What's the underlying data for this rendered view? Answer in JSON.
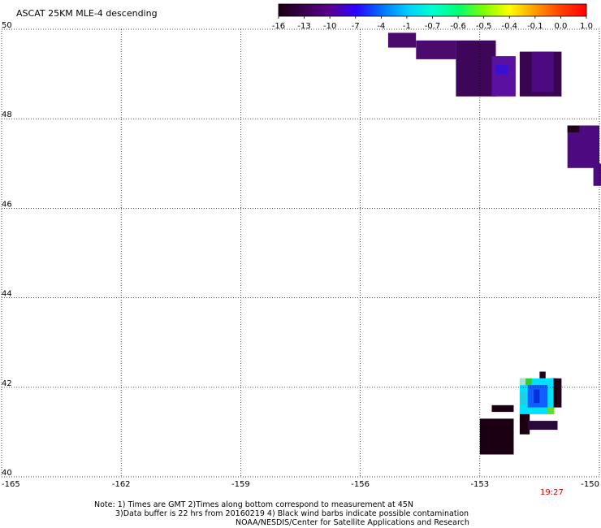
{
  "title": "ASCAT 25KM MLE-4 descending",
  "colorbar": {
    "tick_labels": [
      "-16",
      "-13",
      "-10",
      "-7",
      "-4",
      "-1",
      "-0.7",
      "-0.6",
      "-0.5",
      "-0.4",
      "-0.1",
      "0.0",
      "1.0"
    ],
    "colors": [
      "#1a0010",
      "#3a0050",
      "#5a0090",
      "#2a00ff",
      "#0070ff",
      "#00ccff",
      "#00ffd0",
      "#00ff70",
      "#7fff00",
      "#ffff00",
      "#ff9900",
      "#ff4000",
      "#ff0000"
    ]
  },
  "map": {
    "lat_labels": [
      "50",
      "48",
      "46",
      "44",
      "42",
      "40"
    ],
    "lon_labels": [
      "-165",
      "-162",
      "-159",
      "-156",
      "-153",
      "-150"
    ],
    "lat_values": [
      50,
      48,
      46,
      44,
      42,
      40
    ],
    "lon_values": [
      -165,
      -162,
      -159,
      -156,
      -153,
      -150
    ],
    "time_label": "19:27",
    "cells": [
      {
        "lon": -155.3,
        "lat": 49.92,
        "dlon": 0.7,
        "dlat": 0.33,
        "color": "#4a0a6e"
      },
      {
        "lon": -154.6,
        "lat": 49.75,
        "dlon": 1.0,
        "dlat": 0.42,
        "color": "#4a0a6e"
      },
      {
        "lon": -153.6,
        "lat": 49.75,
        "dlon": 1.0,
        "dlat": 1.25,
        "color": "#3d0658"
      },
      {
        "lon": -152.7,
        "lat": 49.4,
        "dlon": 0.6,
        "dlat": 0.9,
        "color": "#5a10a0"
      },
      {
        "lon": -152.6,
        "lat": 49.2,
        "dlon": 0.3,
        "dlat": 0.2,
        "color": "#3a10d0"
      },
      {
        "lon": -152.0,
        "lat": 49.5,
        "dlon": 1.05,
        "dlat": 1.0,
        "color": "#3a0550"
      },
      {
        "lon": -151.7,
        "lat": 49.5,
        "dlon": 0.55,
        "dlat": 0.9,
        "color": "#4d0a80"
      },
      {
        "lon": -150.8,
        "lat": 47.85,
        "dlon": 0.8,
        "dlat": 0.95,
        "color": "#4d0a80"
      },
      {
        "lon": -150.8,
        "lat": 47.85,
        "dlon": 0.3,
        "dlat": 0.15,
        "color": "#200018"
      },
      {
        "lon": -150.15,
        "lat": 47.0,
        "dlon": 0.3,
        "dlat": 0.5,
        "color": "#4d0a80"
      },
      {
        "lon": -153.0,
        "lat": 41.3,
        "dlon": 0.85,
        "dlat": 0.8,
        "color": "#1a0010"
      },
      {
        "lon": -152.7,
        "lat": 41.6,
        "dlon": 0.55,
        "dlat": 0.15,
        "color": "#1a0010"
      },
      {
        "lon": -152.0,
        "lat": 41.5,
        "dlon": 0.25,
        "dlat": 0.55,
        "color": "#1a0010"
      },
      {
        "lon": -151.8,
        "lat": 41.25,
        "dlon": 0.75,
        "dlat": 0.2,
        "color": "#2a0838"
      },
      {
        "lon": -151.3,
        "lat": 42.2,
        "dlon": 0.35,
        "dlat": 0.65,
        "color": "#200018"
      },
      {
        "lon": -151.2,
        "lat": 42.2,
        "dlon": 0.15,
        "dlat": 0.6,
        "color": "#1a0010"
      },
      {
        "lon": -151.5,
        "lat": 42.35,
        "dlon": 0.15,
        "dlat": 0.15,
        "color": "#200018"
      },
      {
        "lon": -152.0,
        "lat": 42.2,
        "dlon": 0.85,
        "dlat": 0.8,
        "color": "#00e0ff"
      },
      {
        "lon": -151.8,
        "lat": 42.05,
        "dlon": 0.5,
        "dlat": 0.5,
        "color": "#1060ff"
      },
      {
        "lon": -151.65,
        "lat": 41.95,
        "dlon": 0.15,
        "dlat": 0.3,
        "color": "#0030e0"
      },
      {
        "lon": -152.0,
        "lat": 42.2,
        "dlon": 0.15,
        "dlat": 0.15,
        "color": "#b0e0c8"
      },
      {
        "lon": -151.85,
        "lat": 42.2,
        "dlon": 0.15,
        "dlat": 0.15,
        "color": "#30d020"
      },
      {
        "lon": -151.3,
        "lat": 41.55,
        "dlon": 0.17,
        "dlat": 0.15,
        "color": "#60e020"
      },
      {
        "lon": -152.0,
        "lat": 41.9,
        "dlon": 0.15,
        "dlat": 0.3,
        "color": "#20d0e0"
      }
    ]
  },
  "notes": {
    "line1": "Note: 1) Times are GMT 2)Times along bottom correspond to measurement at 45N",
    "line2": "3)Data buffer is 22 hrs from 20160219 4) Black wind barbs indicate possible contamination",
    "line3": "NOAA/NESDIS/Center for Satellite Applications and Research"
  }
}
